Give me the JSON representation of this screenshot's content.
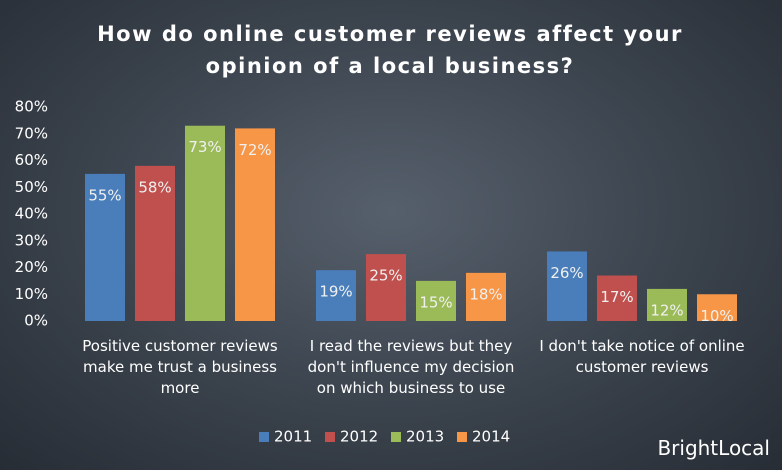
{
  "chart_data": {
    "type": "bar",
    "title": "How do online customer reviews affect your opinion of a local business?",
    "categories": [
      "Positive customer reviews make me trust a business more",
      "I read the reviews but they don't influence my decision on which business to use",
      "I don't take notice of online customer reviews"
    ],
    "series": [
      {
        "name": "2011",
        "color": "#4a7ebb",
        "values": [
          55,
          19,
          26
        ],
        "value_labels": [
          "55%",
          "19%",
          "26%"
        ]
      },
      {
        "name": "2012",
        "color": "#c0504d",
        "values": [
          58,
          25,
          17
        ],
        "value_labels": [
          "58%",
          "25%",
          "17%"
        ]
      },
      {
        "name": "2013",
        "color": "#9bbb59",
        "values": [
          73,
          15,
          12
        ],
        "value_labels": [
          "73%",
          "15%",
          "12%"
        ]
      },
      {
        "name": "2014",
        "color": "#f79646",
        "values": [
          72,
          18,
          10
        ],
        "value_labels": [
          "72%",
          "18%",
          "10%"
        ]
      }
    ],
    "ylim": [
      0,
      80
    ],
    "yticks": [
      {
        "value": 0,
        "label": "0%"
      },
      {
        "value": 10,
        "label": "10%"
      },
      {
        "value": 20,
        "label": "20%"
      },
      {
        "value": 30,
        "label": "30%"
      },
      {
        "value": 40,
        "label": "40%"
      },
      {
        "value": 50,
        "label": "50%"
      },
      {
        "value": 60,
        "label": "60%"
      },
      {
        "value": 70,
        "label": "70%"
      },
      {
        "value": 80,
        "label": "80%"
      }
    ],
    "legend": "bottom"
  },
  "brand": "BrightLocal"
}
